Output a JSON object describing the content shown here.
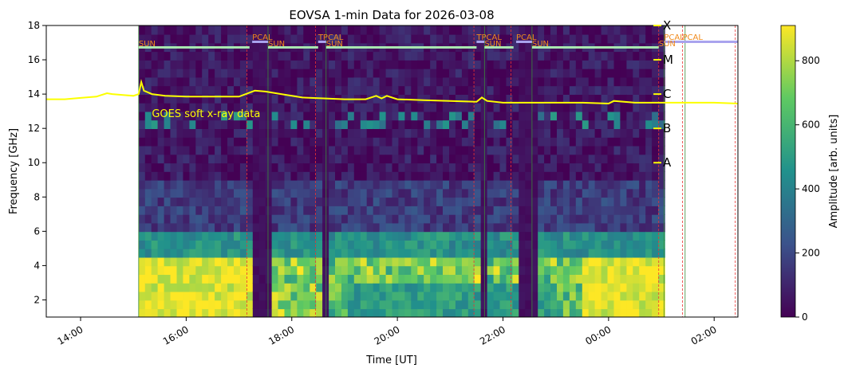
{
  "chart_data": {
    "type": "heatmap",
    "title": "EOVSA 1-min Data for 2026-03-08",
    "xlabel": "Time [UT]",
    "ylabel": "Frequency [GHz]",
    "ylim": [
      1,
      18
    ],
    "xlim_hours": [
      13.35,
      26.45
    ],
    "x_ticks": [
      {
        "hour": 14,
        "label": "14:00"
      },
      {
        "hour": 16,
        "label": "16:00"
      },
      {
        "hour": 18,
        "label": "18:00"
      },
      {
        "hour": 20,
        "label": "20:00"
      },
      {
        "hour": 22,
        "label": "22:00"
      },
      {
        "hour": 24,
        "label": "00:00"
      },
      {
        "hour": 26,
        "label": "02:00"
      }
    ],
    "y_ticks": [
      2,
      4,
      6,
      8,
      10,
      12,
      14,
      16,
      18
    ],
    "colorbar": {
      "label": "Amplitude [arb. units]",
      "range": [
        0,
        910
      ],
      "ticks": [
        0,
        200,
        400,
        600,
        800
      ],
      "colormap": [
        "#440154",
        "#3b528b",
        "#21918c",
        "#5ec962",
        "#fde725"
      ]
    },
    "data_span_hours": [
      15.1,
      25.0
    ],
    "gaps_hours": [
      [
        17.2,
        17.55
      ],
      [
        18.5,
        18.65
      ],
      [
        21.5,
        21.65
      ],
      [
        22.2,
        22.55
      ]
    ],
    "scan_labels": [
      {
        "hour": 15.1,
        "label": "SUN",
        "row": 0
      },
      {
        "hour": 17.25,
        "label": "PCAL",
        "row": 1
      },
      {
        "hour": 17.55,
        "label": "SUN",
        "row": 0
      },
      {
        "hour": 18.5,
        "label": "TPCAL",
        "row": 1
      },
      {
        "hour": 18.65,
        "label": "SUN",
        "row": 0
      },
      {
        "hour": 21.5,
        "label": "TPCAL",
        "row": 1
      },
      {
        "hour": 21.65,
        "label": "SUN",
        "row": 0
      },
      {
        "hour": 22.25,
        "label": "PCAL",
        "row": 1
      },
      {
        "hour": 22.55,
        "label": "SUN",
        "row": 0
      },
      {
        "hour": 24.95,
        "label": "SUN",
        "row": 0
      },
      {
        "hour": 25.05,
        "label": "PCAL",
        "row": 1
      },
      {
        "hour": 25.4,
        "label": "PCAL",
        "row": 1
      }
    ],
    "scan_bars": [
      {
        "start": 15.1,
        "end": 17.2,
        "type": "sun"
      },
      {
        "start": 17.25,
        "end": 17.55,
        "type": "cal"
      },
      {
        "start": 17.55,
        "end": 18.5,
        "type": "sun"
      },
      {
        "start": 18.5,
        "end": 18.65,
        "type": "cal"
      },
      {
        "start": 18.65,
        "end": 21.5,
        "type": "sun"
      },
      {
        "start": 21.5,
        "end": 21.65,
        "type": "cal"
      },
      {
        "start": 21.65,
        "end": 22.2,
        "type": "sun"
      },
      {
        "start": 22.25,
        "end": 22.55,
        "type": "cal"
      },
      {
        "start": 22.55,
        "end": 24.95,
        "type": "sun"
      },
      {
        "start": 25.05,
        "end": 26.45,
        "type": "cal"
      }
    ],
    "goes_label": "GOES soft x-ray data",
    "goes_levels": [
      {
        "label": "X",
        "freq": 18
      },
      {
        "label": "M",
        "freq": 16
      },
      {
        "label": "C",
        "freq": 14
      },
      {
        "label": "B",
        "freq": 12
      },
      {
        "label": "A",
        "freq": 10
      }
    ],
    "goes_series": {
      "x": [
        13.35,
        13.7,
        14.0,
        14.3,
        14.5,
        14.6,
        14.8,
        15.0,
        15.1,
        15.15,
        15.2,
        15.35,
        15.6,
        16.0,
        16.5,
        17.0,
        17.3,
        17.5,
        17.8,
        18.2,
        18.6,
        19.0,
        19.4,
        19.6,
        19.7,
        19.8,
        20.0,
        20.5,
        21.0,
        21.5,
        21.6,
        21.7,
        22.0,
        22.5,
        23.0,
        23.5,
        24.0,
        24.1,
        24.5,
        25.0,
        25.5,
        26.0,
        26.45
      ],
      "y": [
        13.7,
        13.7,
        13.78,
        13.85,
        14.05,
        14.0,
        13.95,
        13.9,
        14.0,
        14.7,
        14.2,
        14.0,
        13.9,
        13.85,
        13.85,
        13.85,
        14.2,
        14.15,
        14.0,
        13.8,
        13.75,
        13.7,
        13.7,
        13.9,
        13.75,
        13.9,
        13.7,
        13.65,
        13.6,
        13.55,
        13.8,
        13.6,
        13.5,
        13.5,
        13.5,
        13.5,
        13.45,
        13.6,
        13.5,
        13.5,
        13.5,
        13.5,
        13.45
      ]
    },
    "red_markers_hours": [
      17.15,
      18.45,
      21.45,
      22.15,
      24.95,
      25.4,
      26.4
    ],
    "green_markers_hours": [
      15.1,
      17.55,
      18.65,
      21.65,
      22.55,
      25.05,
      25.45
    ]
  }
}
